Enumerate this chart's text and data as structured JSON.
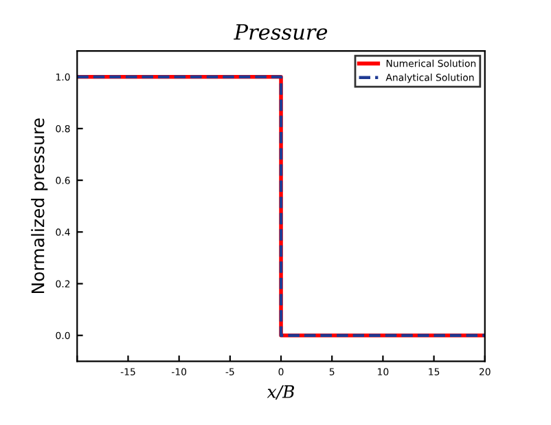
{
  "chart_data": {
    "type": "line",
    "title": "Pressure",
    "xlabel": "x/B",
    "ylabel": "Normalized pressure",
    "x": [
      -20,
      0,
      0,
      20
    ],
    "series": [
      {
        "name": "Numerical Solution",
        "color": "#ff0000",
        "values": [
          1,
          1,
          0,
          0
        ],
        "line_style": "solid"
      },
      {
        "name": "Analytical Solution",
        "color": "#1f3a93",
        "values": [
          1,
          1,
          0,
          0
        ],
        "line_style": "dashed"
      }
    ],
    "xlim": [
      -20,
      20
    ],
    "xticks": [
      {
        "value": -20,
        "label": null
      },
      -15,
      -10,
      -5,
      0,
      5,
      10,
      15,
      20
    ],
    "ylim": [
      -0.1,
      1.1
    ],
    "yticks": [
      {
        "value": 0,
        "label": "0.0"
      },
      {
        "value": 0.2,
        "label": "0.2"
      },
      {
        "value": 0.4,
        "label": "0.4"
      },
      {
        "value": 0.6,
        "label": "0.6"
      },
      {
        "value": 0.8,
        "label": "0.8"
      },
      {
        "value": 1,
        "label": "1.0"
      }
    ],
    "grid": false,
    "legend": "top right",
    "marker": "none"
  }
}
